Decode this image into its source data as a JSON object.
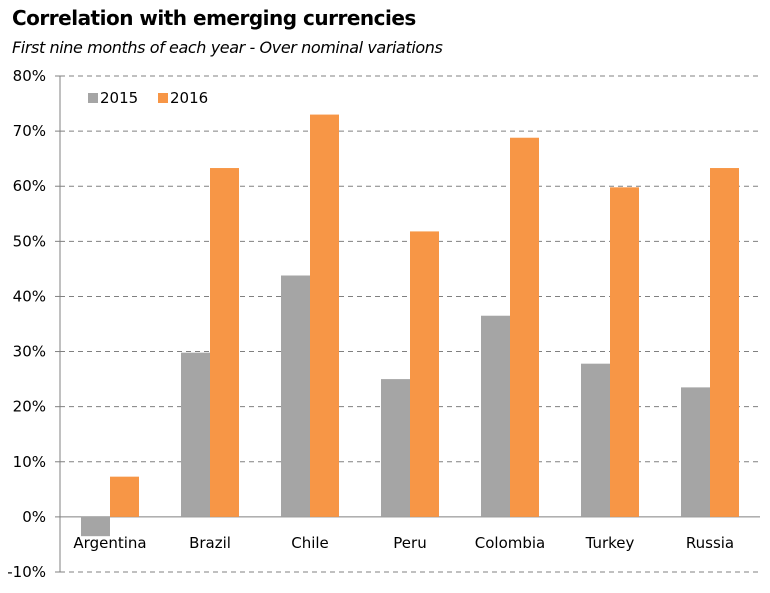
{
  "chart_data": {
    "type": "bar",
    "title": "Correlation with emerging currencies",
    "subtitle": "First nine months of each year - Over nominal variations",
    "categories": [
      "Argentina",
      "Brazil",
      "Chile",
      "Peru",
      "Colombia",
      "Turkey",
      "Russia"
    ],
    "series": [
      {
        "name": "2015",
        "color": "#a5a5a5",
        "values": [
          -3.5,
          29.8,
          43.8,
          25.0,
          36.5,
          27.8,
          23.5
        ]
      },
      {
        "name": "2016",
        "color": "#f79646",
        "values": [
          7.3,
          63.3,
          73.0,
          51.8,
          68.8,
          59.8,
          63.3
        ]
      }
    ],
    "ylim": [
      -10,
      80
    ],
    "yticks": [
      "-10%",
      "0%",
      "10%",
      "20%",
      "30%",
      "40%",
      "50%",
      "60%",
      "70%",
      "80%"
    ],
    "ytick_values": [
      -10,
      0,
      10,
      20,
      30,
      40,
      50,
      60,
      70,
      80
    ],
    "grid": true,
    "legend_position": "top-left"
  }
}
